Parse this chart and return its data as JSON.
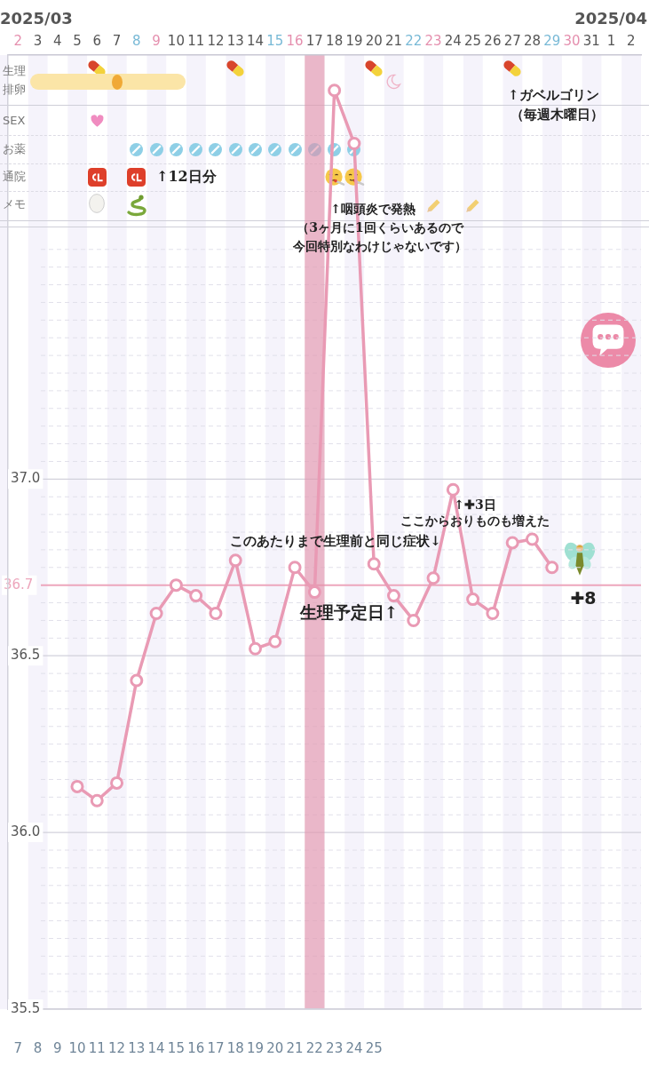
{
  "chart_data": {
    "type": "line",
    "x": [
      "2025-03-05",
      "2025-03-06",
      "2025-03-07",
      "2025-03-08",
      "2025-03-09",
      "2025-03-10",
      "2025-03-11",
      "2025-03-12",
      "2025-03-13",
      "2025-03-14",
      "2025-03-15",
      "2025-03-16",
      "2025-03-17",
      "2025-03-18",
      "2025-03-19",
      "2025-03-20",
      "2025-03-21",
      "2025-03-22",
      "2025-03-23",
      "2025-03-24",
      "2025-03-25",
      "2025-03-26",
      "2025-03-27",
      "2025-03-28",
      "2025-03-29"
    ],
    "series": [
      {
        "color": "#e99ab4",
        "values": [
          36.13,
          36.09,
          36.14,
          36.43,
          36.62,
          36.7,
          36.67,
          36.62,
          36.77,
          36.52,
          36.54,
          36.75,
          36.68,
          38.1,
          37.95,
          36.76,
          36.67,
          36.6,
          36.72,
          36.97,
          36.66,
          36.62,
          36.82,
          36.83,
          36.75
        ]
      }
    ],
    "xlim": [
      "2025-03-01T12:00",
      "2025-04-02T12:00"
    ],
    "xticks": [
      {
        "value": "2025-03-02",
        "label": "2"
      },
      {
        "value": "2025-03-03",
        "label": "3"
      },
      {
        "value": "2025-03-04",
        "label": "4"
      },
      {
        "value": "2025-03-05",
        "label": "5"
      },
      {
        "value": "2025-03-06",
        "label": "6"
      },
      {
        "value": "2025-03-07",
        "label": "7"
      },
      {
        "value": "2025-03-08",
        "label": "8"
      },
      {
        "value": "2025-03-09",
        "label": "9"
      },
      {
        "value": "2025-03-10",
        "label": "10"
      },
      {
        "value": "2025-03-11",
        "label": "11"
      },
      {
        "value": "2025-03-12",
        "label": "12"
      },
      {
        "value": "2025-03-13",
        "label": "13"
      },
      {
        "value": "2025-03-14",
        "label": "14"
      },
      {
        "value": "2025-03-15",
        "label": "15"
      },
      {
        "value": "2025-03-16",
        "label": "16"
      },
      {
        "value": "2025-03-17",
        "label": "17"
      },
      {
        "value": "2025-03-18",
        "label": "18"
      },
      {
        "value": "2025-03-19",
        "label": "19"
      },
      {
        "value": "2025-03-20",
        "label": "20"
      },
      {
        "value": "2025-03-21",
        "label": "21"
      },
      {
        "value": "2025-03-22",
        "label": "22"
      },
      {
        "value": "2025-03-23",
        "label": "23"
      },
      {
        "value": "2025-03-24",
        "label": "24"
      },
      {
        "value": "2025-03-25",
        "label": "25"
      },
      {
        "value": "2025-03-26",
        "label": "26"
      },
      {
        "value": "2025-03-27",
        "label": "27"
      },
      {
        "value": "2025-03-28",
        "label": "28"
      },
      {
        "value": "2025-03-29",
        "label": "29"
      },
      {
        "value": "2025-03-30",
        "label": "30"
      },
      {
        "value": "2025-03-31",
        "label": "31"
      },
      {
        "value": "2025-04-01",
        "label": "1"
      },
      {
        "value": "2025-04-02",
        "label": "2"
      }
    ],
    "x2lim": [
      6.5,
      38.5
    ],
    "x2ticks": [
      7,
      8,
      9,
      10,
      11,
      12,
      13,
      14,
      15,
      16,
      17,
      18,
      19,
      20,
      21,
      22,
      23,
      24,
      25
    ],
    "ylim": [
      35.5,
      38.2
    ],
    "yticks": [
      35.5,
      {
        "value": 35.55,
        "label": null
      },
      {
        "value": 35.6,
        "label": null
      },
      {
        "value": 35.65,
        "label": null
      },
      {
        "value": 35.7,
        "label": null
      },
      {
        "value": 35.75,
        "label": null
      },
      {
        "value": 35.8,
        "label": null
      },
      {
        "value": 35.85,
        "label": null
      },
      {
        "value": 35.9,
        "label": null
      },
      {
        "value": 35.95,
        "label": null
      },
      {
        "value": 36,
        "label": "36.0"
      },
      {
        "value": 36.05,
        "label": null
      },
      {
        "value": 36.1,
        "label": null
      },
      {
        "value": 36.15,
        "label": null
      },
      {
        "value": 36.2,
        "label": null
      },
      {
        "value": 36.25,
        "label": null
      },
      {
        "value": 36.3,
        "label": null
      },
      {
        "value": 36.35,
        "label": null
      },
      {
        "value": 36.4,
        "label": null
      },
      {
        "value": 36.45,
        "label": null
      },
      36.5,
      {
        "value": 36.55,
        "label": null
      },
      {
        "value": 36.6,
        "label": null
      },
      {
        "value": 36.65,
        "label": null
      },
      {
        "value": 36.75,
        "label": null
      },
      {
        "value": 36.8,
        "label": null
      },
      {
        "value": 36.85,
        "label": null
      },
      {
        "value": 36.9,
        "label": null
      },
      {
        "value": 36.95,
        "label": null
      },
      {
        "value": 37,
        "label": "37.0"
      },
      {
        "value": 37.05,
        "label": null
      },
      {
        "value": 37.1,
        "label": null
      },
      {
        "value": 37.15,
        "label": null
      },
      {
        "value": 37.2,
        "label": null
      },
      {
        "value": 37.25,
        "label": null
      },
      {
        "value": 37.3,
        "label": null
      },
      {
        "value": 37.35,
        "label": null
      },
      {
        "value": 37.4,
        "label": null
      },
      {
        "value": 37.45,
        "label": null
      },
      {
        "value": 37.5,
        "label": null
      },
      {
        "value": 37.55,
        "label": null
      },
      {
        "value": 37.6,
        "label": null
      },
      {
        "value": 37.65,
        "label": null
      }
    ],
    "grid": "y",
    "marker": "circle",
    "line_style": "solid",
    "ref_lines": [
      {
        "axis": "y",
        "value": 36.7,
        "label": "36.7",
        "color": "#eda6bc"
      }
    ],
    "bands": [
      {
        "axis": "x2",
        "from": 21.5,
        "to": 22.5,
        "color": "#eebccb"
      }
    ],
    "annotations": [
      "2025/03",
      "2025/04",
      "生理",
      "排卵",
      "SEX",
      "お薬",
      "通院",
      "メモ",
      "↑ガベルゴリン",
      "（毎週木曜日）",
      "↑12日分",
      "↑咽頭炎で発熱",
      "（3ヶ月に1回くらいあるので",
      "今回特別なわけじゃないです）",
      "このあたりまで生理前と同じ症状↓",
      "↑✚3日",
      "ここからおりものも増えた",
      "生理予定日↑",
      "✚8"
    ]
  }
}
